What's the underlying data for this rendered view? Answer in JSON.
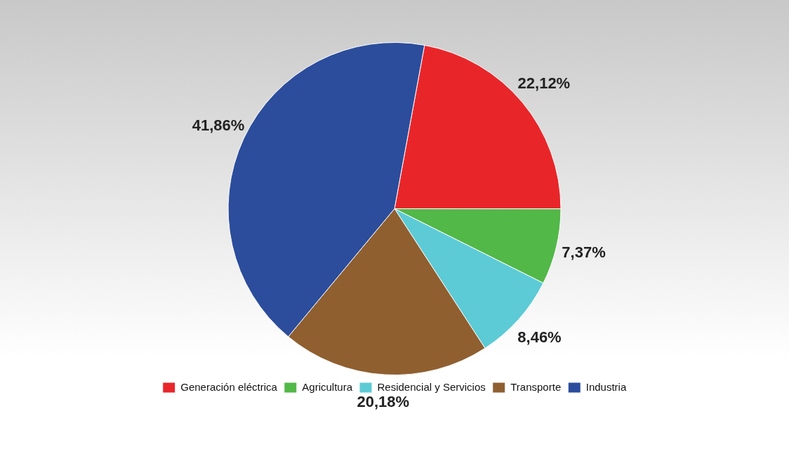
{
  "chart_data": {
    "type": "pie",
    "categories": [
      "Generación eléctrica",
      "Agricultura",
      "Residencial y Servicios",
      "Transporte",
      "Industria"
    ],
    "values": [
      22.12,
      7.37,
      8.46,
      20.18,
      41.86
    ],
    "value_labels": [
      "22,12%",
      "7,37%",
      "8,46%",
      "20,18%",
      "41,86%"
    ],
    "colors": [
      "#e8262a",
      "#52b848",
      "#5ccbd6",
      "#8f5f30",
      "#2c4d9c"
    ],
    "legend": "bottom"
  }
}
